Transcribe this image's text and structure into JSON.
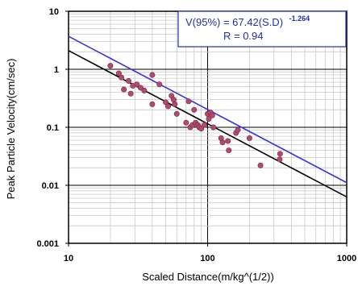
{
  "chart_data": {
    "type": "scatter",
    "x_scale": "log",
    "y_scale": "log",
    "xlim": [
      10,
      1000
    ],
    "ylim": [
      0.001,
      10
    ],
    "xlabel": "Scaled Distance(m/kg^(1/2))",
    "ylabel": "Peak Particle Velocity(cm/sec)",
    "x_tick_labels": [
      "10",
      "100",
      "1000"
    ],
    "y_tick_labels": [
      "0.001",
      "0.01",
      "0.1",
      "1",
      "10"
    ],
    "grid": true,
    "annotation": {
      "line1_prefix": "V(95%) = 67.42(S.D)",
      "line1_exponent": "-1.264",
      "line2": "R = 0.94"
    },
    "series": [
      {
        "kind": "points",
        "color": "#b04a6e",
        "points": [
          [
            20,
            1.15
          ],
          [
            23,
            0.85
          ],
          [
            24,
            0.72
          ],
          [
            25,
            0.45
          ],
          [
            27,
            0.63
          ],
          [
            28,
            0.38
          ],
          [
            29,
            0.52
          ],
          [
            31,
            0.55
          ],
          [
            33,
            0.48
          ],
          [
            35,
            0.43
          ],
          [
            40,
            0.8
          ],
          [
            40,
            0.25
          ],
          [
            45,
            0.55
          ],
          [
            50,
            0.27
          ],
          [
            52,
            0.23
          ],
          [
            55,
            0.35
          ],
          [
            57,
            0.3
          ],
          [
            58,
            0.25
          ],
          [
            60,
            0.17
          ],
          [
            70,
            0.12
          ],
          [
            73,
            0.28
          ],
          [
            75,
            0.1
          ],
          [
            78,
            0.11
          ],
          [
            80,
            0.2
          ],
          [
            82,
            0.12
          ],
          [
            85,
            0.11
          ],
          [
            87,
            0.1
          ],
          [
            90,
            0.095
          ],
          [
            95,
            0.11
          ],
          [
            100,
            0.17
          ],
          [
            102,
            0.14
          ],
          [
            105,
            0.18
          ],
          [
            108,
            0.16
          ],
          [
            110,
            0.1
          ],
          [
            125,
            0.065
          ],
          [
            128,
            0.055
          ],
          [
            140,
            0.058
          ],
          [
            142,
            0.04
          ],
          [
            160,
            0.08
          ],
          [
            165,
            0.09
          ],
          [
            200,
            0.065
          ],
          [
            240,
            0.022
          ],
          [
            330,
            0.028
          ],
          [
            332,
            0.035
          ]
        ]
      },
      {
        "kind": "fit-line",
        "color": "#000000",
        "start": [
          10,
          2.1
        ],
        "end": [
          1000,
          0.0063
        ]
      },
      {
        "kind": "fit-line-95",
        "color": "#3a35d8",
        "start": [
          10,
          3.7
        ],
        "end": [
          1000,
          0.0111
        ]
      }
    ]
  }
}
